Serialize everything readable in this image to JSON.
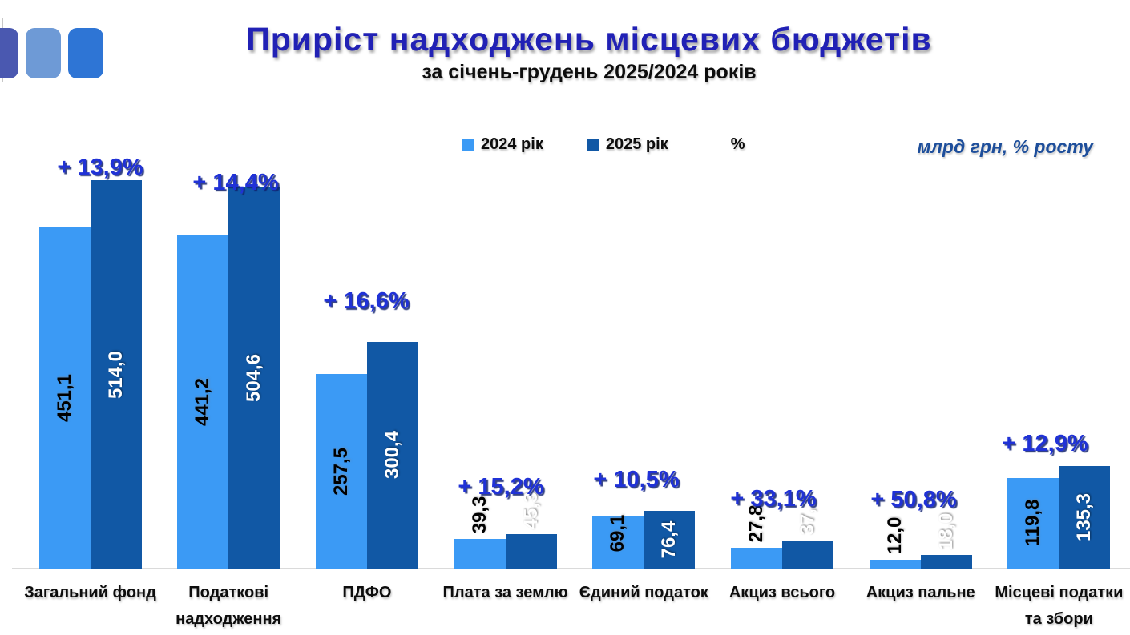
{
  "logo": {
    "colors": [
      "#4a58b0",
      "#6e9ad6",
      "#2e75d5"
    ]
  },
  "header": {
    "title": "Приріст надходжень місцевих бюджетів",
    "subtitle": "за січень-грудень 2025/2024 років"
  },
  "legend": {
    "items": [
      {
        "label": "2024 рік",
        "color": "#3b9af5"
      },
      {
        "label": "2025 рік",
        "color": "#1158a5"
      },
      {
        "label": "%",
        "color": null
      }
    ]
  },
  "units_note": "млрд грн, % росту",
  "colors": {
    "bar_2024": "#3b9af5",
    "bar_2025": "#1158a5",
    "title_blue": "#2121b5",
    "growth_blue": "#2032d6",
    "units_navy": "#1d4e9b",
    "axis_gray": "#dadada"
  },
  "chart_data": {
    "type": "bar",
    "title": "Приріст надходжень місцевих бюджетів",
    "subtitle": "за січень-грудень 2025/2024 років",
    "unit": "млрд грн, % росту",
    "ylim": [
      0,
      545
    ],
    "grid": false,
    "legend_position": "top-center",
    "categories": [
      "Загальний фонд",
      "Податкові надходження",
      "ПДФО",
      "Плата за землю",
      "Єдиний податок",
      "Акциз всього",
      "Акциз пальне",
      "Місцеві податки та збори"
    ],
    "series": [
      {
        "name": "2024 рік",
        "color": "#3b9af5",
        "values": [
          451.1,
          441.2,
          257.5,
          39.3,
          69.1,
          27.8,
          12.0,
          119.8
        ],
        "labels": [
          "451,1",
          "441,2",
          "257,5",
          "39,3",
          "69,1",
          "27,8",
          "12,0",
          "119,8"
        ]
      },
      {
        "name": "2025 рік",
        "color": "#1158a5",
        "values": [
          514.0,
          504.6,
          300.4,
          45.3,
          76.4,
          37.1,
          18.0,
          135.3
        ],
        "labels": [
          "514,0",
          "504,6",
          "300,4",
          "45,3",
          "76,4",
          "37,1",
          "18,0",
          "135,3"
        ]
      }
    ],
    "growth_series": {
      "name": "%",
      "percent": [
        13.9,
        14.4,
        16.6,
        15.2,
        10.5,
        33.1,
        50.8,
        12.9
      ],
      "labels": [
        "+ 13,9%",
        "+ 14,4%",
        "+ 16,6%",
        "+ 15,2%",
        "+ 10,5%",
        "+ 33,1%",
        "+ 50,8%",
        "+ 12,9%"
      ]
    }
  }
}
